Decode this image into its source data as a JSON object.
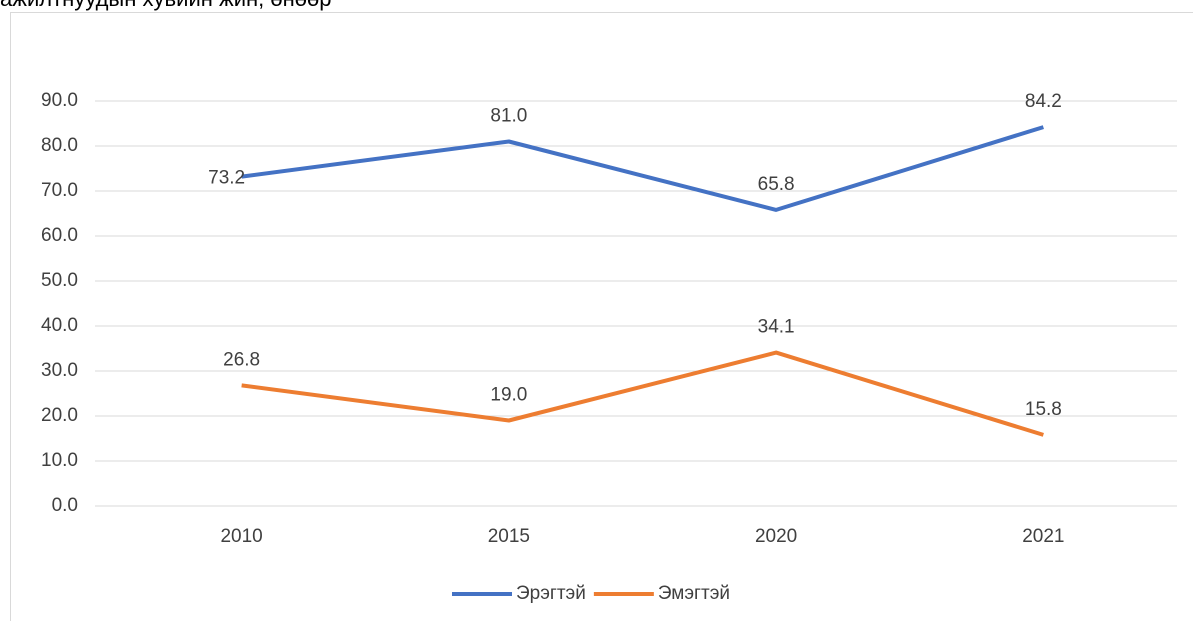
{
  "chart_data": {
    "type": "line",
    "title": "ажилтнуудын хувийн жин, өнөөр",
    "categories": [
      "2010",
      "2015",
      "2020",
      "2021"
    ],
    "series": [
      {
        "name": "Эрэгтэй",
        "color": "#4472c4",
        "values": [
          73.2,
          81.0,
          65.8,
          84.2
        ],
        "value_labels": [
          "73.2",
          "81.0",
          "65.8",
          "84.2"
        ]
      },
      {
        "name": "Эмэгтэй",
        "color": "#ed7d31",
        "values": [
          26.8,
          19.0,
          34.1,
          15.8
        ],
        "value_labels": [
          "26.8",
          "19.0",
          "34.1",
          "15.8"
        ]
      }
    ],
    "ylim": [
      0,
      90
    ],
    "yticks": [
      {
        "value": 0,
        "label": "0.0"
      },
      {
        "value": 10,
        "label": "10.0"
      },
      {
        "value": 20,
        "label": "20.0"
      },
      {
        "value": 30,
        "label": "30.0"
      },
      {
        "value": 40,
        "label": "40.0"
      },
      {
        "value": 50,
        "label": "50.0"
      },
      {
        "value": 60,
        "label": "60.0"
      },
      {
        "value": 70,
        "label": "70.0"
      },
      {
        "value": 80,
        "label": "80.0"
      },
      {
        "value": 90,
        "label": "90.0"
      }
    ],
    "grid": true,
    "legend": "bottom"
  }
}
